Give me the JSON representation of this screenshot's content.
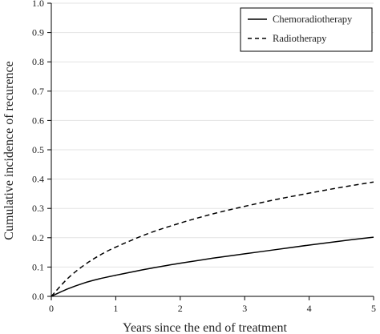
{
  "chart_data": {
    "type": "line",
    "title": "",
    "xlabel": "Years since the end of treatment",
    "ylabel": "Cumulative incidence of recurence",
    "xlim": [
      0,
      5
    ],
    "ylim": [
      0,
      1.0
    ],
    "x_ticks": [
      "0",
      "1",
      "2",
      "3",
      "4",
      "5"
    ],
    "y_ticks": [
      "0.0",
      "0.1",
      "0.2",
      "0.3",
      "0.4",
      "0.5",
      "0.6",
      "0.7",
      "0.8",
      "0.9",
      "1.0"
    ],
    "grid": "horizontal",
    "legend_position": "top-right",
    "series": [
      {
        "name": "Chemoradiotherapy",
        "line_style": "solid",
        "color": "#000000",
        "x": [
          0,
          0.25,
          0.5,
          0.75,
          1,
          1.5,
          2,
          2.5,
          3,
          3.5,
          4,
          4.5,
          5
        ],
        "y": [
          0,
          0.025,
          0.045,
          0.06,
          0.072,
          0.094,
          0.113,
          0.13,
          0.145,
          0.16,
          0.175,
          0.189,
          0.202
        ]
      },
      {
        "name": "Radiotherapy",
        "line_style": "dashed",
        "color": "#000000",
        "x": [
          0,
          0.25,
          0.5,
          0.75,
          1,
          1.5,
          2,
          2.5,
          3,
          3.5,
          4,
          4.5,
          5
        ],
        "y": [
          0,
          0.06,
          0.105,
          0.14,
          0.168,
          0.214,
          0.25,
          0.281,
          0.307,
          0.331,
          0.352,
          0.372,
          0.39
        ]
      }
    ]
  }
}
